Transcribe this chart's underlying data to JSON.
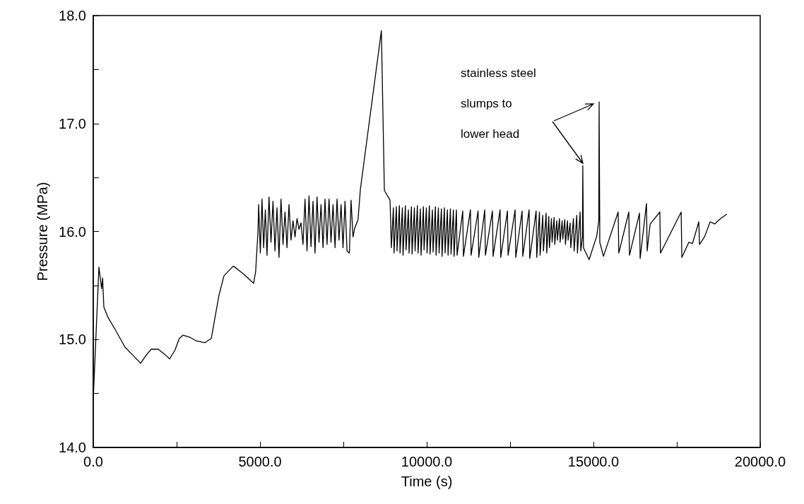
{
  "chart_data": {
    "type": "line",
    "xlabel": "Time (s)",
    "ylabel": "Pressure (MPa)",
    "xlim": [
      0,
      20000
    ],
    "ylim": [
      14,
      18
    ],
    "xticks": [
      {
        "value": 0,
        "label": "0.0"
      },
      {
        "value": 2500,
        "label": null
      },
      {
        "value": 5000,
        "label": "5000.0"
      },
      {
        "value": 7500,
        "label": null
      },
      {
        "value": 10000,
        "label": "10000.0"
      },
      {
        "value": 12500,
        "label": null
      },
      {
        "value": 15000,
        "label": "15000.0"
      },
      {
        "value": 17500,
        "label": null
      },
      {
        "value": 20000,
        "label": "20000.0"
      }
    ],
    "yticks": [
      {
        "value": 14,
        "label": "14.0"
      },
      {
        "value": 14.5,
        "label": null
      },
      {
        "value": 15,
        "label": "15.0"
      },
      {
        "value": 15.5,
        "label": null
      },
      {
        "value": 16,
        "label": "16.0"
      },
      {
        "value": 16.5,
        "label": null
      },
      {
        "value": 17,
        "label": "17.0"
      },
      {
        "value": 17.5,
        "label": null
      },
      {
        "value": 18,
        "label": "18.0"
      }
    ],
    "grid": false,
    "marker": "none",
    "line_style": "solid",
    "annotations": [
      "stainless steel\nslumps to\nlower head"
    ],
    "series": [
      {
        "color": "#000000",
        "x": [
          0,
          170,
          250,
          280,
          318,
          450,
          680,
          950,
          1200,
          1420,
          1600,
          1740,
          1950,
          2150,
          2290,
          2450,
          2580,
          2690,
          2900,
          3070,
          3350,
          3540,
          3770,
          3920,
          4200,
          4490,
          4810,
          4870,
          4940,
          4960,
          5010,
          5060,
          5110,
          5160,
          5210,
          5270,
          5330,
          5390,
          5450,
          5510,
          5570,
          5630,
          5690,
          5750,
          5810,
          5870,
          5930,
          5990,
          6050,
          6110,
          6170,
          6230,
          6290,
          6350,
          6410,
          6470,
          6530,
          6590,
          6650,
          6710,
          6770,
          6830,
          6890,
          6950,
          7010,
          7070,
          7130,
          7190,
          7250,
          7310,
          7370,
          7430,
          7490,
          7550,
          7610,
          7680,
          7730,
          7790,
          7840,
          7940,
          8010,
          8640,
          8730,
          8900,
          8940,
          9000,
          9020,
          9090,
          9110,
          9180,
          9200,
          9270,
          9290,
          9360,
          9380,
          9450,
          9470,
          9540,
          9560,
          9630,
          9650,
          9720,
          9740,
          9810,
          9830,
          9900,
          9920,
          9990,
          10010,
          10080,
          10100,
          10170,
          10190,
          10260,
          10280,
          10350,
          10370,
          10440,
          10460,
          10530,
          10550,
          10620,
          10640,
          10710,
          10730,
          10800,
          10820,
          10890,
          10910,
          11080,
          11100,
          11310,
          11330,
          11540,
          11560,
          11740,
          11760,
          11970,
          11990,
          12200,
          12220,
          12420,
          12440,
          12650,
          12670,
          12860,
          12880,
          13070,
          13090,
          13280,
          13300,
          13380,
          13400,
          13480,
          13500,
          13580,
          13600,
          13660,
          13680,
          13740,
          13760,
          13820,
          13840,
          13900,
          13920,
          13980,
          14000,
          14060,
          14080,
          14140,
          14160,
          14220,
          14240,
          14300,
          14320,
          14400,
          14420,
          14500,
          14520,
          14600,
          14620,
          14670,
          14680,
          14700,
          14870,
          15100,
          15160,
          15170,
          15190,
          15300,
          15740,
          15760,
          16060,
          16080,
          16380,
          16400,
          16590,
          16610,
          16700,
          16990,
          17010,
          17630,
          17650,
          17860,
          17970,
          18160,
          18180,
          18330,
          18500,
          18640,
          18810,
          19000
        ],
        "values": [
          14.45,
          15.67,
          15.47,
          15.57,
          15.3,
          15.2,
          15.08,
          14.93,
          14.85,
          14.78,
          14.86,
          14.91,
          14.91,
          14.86,
          14.82,
          14.9,
          15.01,
          15.04,
          15.02,
          14.99,
          14.97,
          15.01,
          15.41,
          15.59,
          15.68,
          15.61,
          15.52,
          15.63,
          16.0,
          16.25,
          15.8,
          16.3,
          15.85,
          16.2,
          15.78,
          16.32,
          15.9,
          16.28,
          15.82,
          16.22,
          15.76,
          16.3,
          15.88,
          16.18,
          15.85,
          16.25,
          15.92,
          16.1,
          15.95,
          16.12,
          16.02,
          16.08,
          15.88,
          16.3,
          15.82,
          16.33,
          15.86,
          16.28,
          15.8,
          16.32,
          15.9,
          16.25,
          15.85,
          16.3,
          15.88,
          16.3,
          15.9,
          16.25,
          15.85,
          16.3,
          15.92,
          16.25,
          15.85,
          16.28,
          15.82,
          15.8,
          16.29,
          15.95,
          16.03,
          16.11,
          16.39,
          17.86,
          16.38,
          16.29,
          15.85,
          16.22,
          15.8,
          16.23,
          15.82,
          16.24,
          15.8,
          16.22,
          15.78,
          16.24,
          15.83,
          16.2,
          15.8,
          16.23,
          15.79,
          16.22,
          15.82,
          16.24,
          15.8,
          16.21,
          15.78,
          16.23,
          15.83,
          16.22,
          15.8,
          16.24,
          15.79,
          16.2,
          15.81,
          16.23,
          15.78,
          16.22,
          15.8,
          16.21,
          15.77,
          16.22,
          15.8,
          16.2,
          15.78,
          16.21,
          15.79,
          16.2,
          15.77,
          16.2,
          15.78,
          16.19,
          15.77,
          16.2,
          15.78,
          16.19,
          15.76,
          16.2,
          15.78,
          16.19,
          15.77,
          16.2,
          15.76,
          16.19,
          15.78,
          16.2,
          15.76,
          16.19,
          15.77,
          16.2,
          15.75,
          16.19,
          15.76,
          16.18,
          15.78,
          16.15,
          15.82,
          16.17,
          15.8,
          16.14,
          15.85,
          16.12,
          15.9,
          16.13,
          15.88,
          16.1,
          15.92,
          16.12,
          15.9,
          16.1,
          15.93,
          16.11,
          15.88,
          16.1,
          15.92,
          16.08,
          15.85,
          16.12,
          15.82,
          16.15,
          15.8,
          16.18,
          15.82,
          15.95,
          16.61,
          15.85,
          15.74,
          15.96,
          16.1,
          17.2,
          15.9,
          15.77,
          16.18,
          15.8,
          16.18,
          15.78,
          16.17,
          15.75,
          16.26,
          15.82,
          16.07,
          16.18,
          15.8,
          16.18,
          15.76,
          15.9,
          15.89,
          16.09,
          15.88,
          15.95,
          16.09,
          16.07,
          16.12,
          16.16
        ]
      }
    ]
  }
}
